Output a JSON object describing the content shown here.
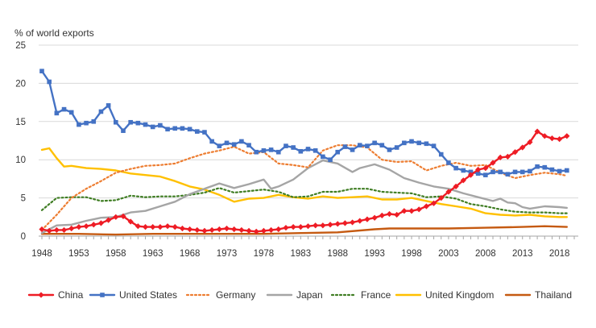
{
  "chart_data": {
    "type": "line",
    "title": "",
    "ylabel": "% of world exports",
    "xlabel": "",
    "xlim": [
      1948,
      2020
    ],
    "ylim": [
      0,
      25
    ],
    "y_ticks": [
      0,
      5,
      10,
      15,
      20,
      25
    ],
    "x_ticks": [
      1948,
      1953,
      1958,
      1963,
      1968,
      1973,
      1978,
      1983,
      1988,
      1993,
      1998,
      2003,
      2008,
      2013,
      2018
    ],
    "grid": "horizontal",
    "legend_position": "bottom",
    "series": [
      {
        "name": "China",
        "color": "#ee1c25",
        "style": "solid",
        "marker": "diamond",
        "x": [
          1948,
          1949,
          1950,
          1951,
          1952,
          1953,
          1954,
          1955,
          1956,
          1957,
          1958,
          1959,
          1960,
          1961,
          1962,
          1963,
          1964,
          1965,
          1966,
          1967,
          1968,
          1969,
          1970,
          1971,
          1972,
          1973,
          1974,
          1975,
          1976,
          1977,
          1978,
          1979,
          1980,
          1981,
          1982,
          1983,
          1984,
          1985,
          1986,
          1987,
          1988,
          1989,
          1990,
          1991,
          1992,
          1993,
          1994,
          1995,
          1996,
          1997,
          1998,
          1999,
          2000,
          2001,
          2002,
          2003,
          2004,
          2005,
          2006,
          2007,
          2008,
          2009,
          2010,
          2011,
          2012,
          2013,
          2014,
          2015,
          2016,
          2017,
          2018,
          2019
        ],
        "y": [
          0.9,
          0.7,
          0.8,
          0.8,
          1.0,
          1.2,
          1.3,
          1.5,
          1.7,
          2.1,
          2.5,
          2.6,
          1.9,
          1.3,
          1.2,
          1.2,
          1.2,
          1.3,
          1.2,
          1.0,
          0.9,
          0.8,
          0.7,
          0.8,
          0.9,
          1.0,
          0.9,
          0.8,
          0.7,
          0.6,
          0.7,
          0.8,
          0.9,
          1.1,
          1.2,
          1.2,
          1.3,
          1.4,
          1.4,
          1.5,
          1.6,
          1.7,
          1.8,
          2.0,
          2.2,
          2.4,
          2.7,
          2.9,
          2.8,
          3.3,
          3.3,
          3.5,
          3.9,
          4.3,
          5.0,
          5.8,
          6.5,
          7.3,
          8.0,
          8.7,
          8.9,
          9.6,
          10.3,
          10.4,
          11.0,
          11.6,
          12.3,
          13.7,
          13.1,
          12.8,
          12.7,
          13.1
        ]
      },
      {
        "name": "United States",
        "color": "#4472c4",
        "style": "solid",
        "marker": "square",
        "x": [
          1948,
          1949,
          1950,
          1951,
          1952,
          1953,
          1954,
          1955,
          1956,
          1957,
          1958,
          1959,
          1960,
          1961,
          1962,
          1963,
          1964,
          1965,
          1966,
          1967,
          1968,
          1969,
          1970,
          1971,
          1972,
          1973,
          1974,
          1975,
          1976,
          1977,
          1978,
          1979,
          1980,
          1981,
          1982,
          1983,
          1984,
          1985,
          1986,
          1987,
          1988,
          1989,
          1990,
          1991,
          1992,
          1993,
          1994,
          1995,
          1996,
          1997,
          1998,
          1999,
          2000,
          2001,
          2002,
          2003,
          2004,
          2005,
          2006,
          2007,
          2008,
          2009,
          2010,
          2011,
          2012,
          2013,
          2014,
          2015,
          2016,
          2017,
          2018,
          2019
        ],
        "y": [
          21.6,
          20.2,
          16.1,
          16.6,
          16.2,
          14.6,
          14.8,
          15.0,
          16.3,
          17.1,
          14.9,
          13.8,
          14.9,
          14.8,
          14.6,
          14.3,
          14.5,
          14.0,
          14.1,
          14.1,
          14.0,
          13.7,
          13.6,
          12.4,
          11.8,
          12.2,
          12.0,
          12.4,
          11.9,
          11.0,
          11.2,
          11.3,
          11.0,
          11.8,
          11.6,
          11.1,
          11.4,
          11.2,
          10.4,
          10.0,
          11.0,
          11.7,
          11.3,
          11.9,
          11.8,
          12.2,
          11.9,
          11.3,
          11.6,
          12.2,
          12.4,
          12.2,
          12.1,
          11.8,
          10.7,
          9.6,
          8.9,
          8.6,
          8.4,
          8.2,
          8.0,
          8.4,
          8.4,
          8.1,
          8.4,
          8.4,
          8.5,
          9.1,
          9.0,
          8.7,
          8.5,
          8.6
        ]
      },
      {
        "name": "Germany",
        "color": "#ed7d31",
        "style": "dotted",
        "marker": "none",
        "x": [
          1948,
          1950,
          1952,
          1954,
          1956,
          1958,
          1960,
          1962,
          1964,
          1966,
          1968,
          1970,
          1972,
          1974,
          1976,
          1978,
          1980,
          1982,
          1984,
          1986,
          1988,
          1990,
          1992,
          1994,
          1996,
          1998,
          2000,
          2002,
          2004,
          2006,
          2008,
          2010,
          2012,
          2014,
          2016,
          2018,
          2019
        ],
        "y": [
          0.8,
          2.8,
          5.0,
          6.2,
          7.2,
          8.3,
          8.8,
          9.2,
          9.3,
          9.5,
          10.2,
          10.8,
          11.2,
          11.7,
          10.8,
          11.0,
          9.5,
          9.3,
          9.0,
          11.2,
          11.9,
          11.9,
          11.6,
          10.0,
          9.7,
          9.8,
          8.6,
          9.2,
          9.6,
          9.2,
          9.3,
          8.3,
          7.6,
          8.0,
          8.3,
          8.1,
          7.9
        ]
      },
      {
        "name": "Japan",
        "color": "#a5a5a5",
        "style": "solid",
        "marker": "none",
        "x": [
          1948,
          1950,
          1952,
          1954,
          1956,
          1958,
          1960,
          1962,
          1964,
          1966,
          1968,
          1970,
          1972,
          1974,
          1976,
          1978,
          1979,
          1980,
          1982,
          1984,
          1986,
          1988,
          1990,
          1991,
          1993,
          1995,
          1997,
          1999,
          2001,
          2003,
          2005,
          2007,
          2009,
          2010,
          2011,
          2012,
          2013,
          2014,
          2016,
          2018,
          2019
        ],
        "y": [
          0.4,
          1.4,
          1.5,
          2.0,
          2.4,
          2.5,
          3.1,
          3.3,
          3.9,
          4.5,
          5.5,
          6.2,
          6.9,
          6.3,
          6.8,
          7.4,
          6.2,
          6.5,
          7.4,
          8.9,
          9.9,
          9.5,
          8.4,
          8.9,
          9.4,
          8.7,
          7.6,
          7.0,
          6.5,
          6.2,
          5.6,
          5.1,
          4.6,
          4.9,
          4.4,
          4.3,
          3.8,
          3.6,
          3.9,
          3.8,
          3.7
        ]
      },
      {
        "name": "France",
        "color": "#3f7d23",
        "style": "dotted",
        "marker": "none",
        "x": [
          1948,
          1950,
          1952,
          1954,
          1956,
          1958,
          1960,
          1962,
          1964,
          1966,
          1968,
          1970,
          1972,
          1974,
          1976,
          1978,
          1980,
          1982,
          1984,
          1986,
          1988,
          1990,
          1992,
          1994,
          1996,
          1998,
          2000,
          2002,
          2004,
          2006,
          2008,
          2010,
          2012,
          2014,
          2016,
          2018,
          2019
        ],
        "y": [
          3.4,
          5.0,
          5.1,
          5.1,
          4.6,
          4.7,
          5.3,
          5.1,
          5.2,
          5.2,
          5.4,
          5.7,
          6.3,
          5.7,
          5.9,
          6.1,
          5.8,
          5.1,
          5.2,
          5.8,
          5.8,
          6.2,
          6.2,
          5.8,
          5.7,
          5.6,
          5.1,
          5.2,
          4.9,
          4.2,
          3.9,
          3.5,
          3.2,
          3.1,
          3.1,
          3.0,
          3.0
        ]
      },
      {
        "name": "United Kingdom",
        "color": "#ffc000",
        "style": "solid",
        "marker": "none",
        "x": [
          1948,
          1949,
          1950,
          1951,
          1952,
          1954,
          1956,
          1958,
          1960,
          1962,
          1964,
          1966,
          1968,
          1970,
          1972,
          1974,
          1976,
          1978,
          1980,
          1982,
          1984,
          1986,
          1988,
          1990,
          1992,
          1994,
          1996,
          1998,
          2000,
          2002,
          2004,
          2006,
          2008,
          2010,
          2012,
          2014,
          2016,
          2018,
          2019
        ],
        "y": [
          11.3,
          11.5,
          10.2,
          9.1,
          9.2,
          8.9,
          8.8,
          8.6,
          8.2,
          8.0,
          7.8,
          7.2,
          6.5,
          6.1,
          5.4,
          4.5,
          4.9,
          5.0,
          5.4,
          5.1,
          4.9,
          5.2,
          5.0,
          5.1,
          5.2,
          4.8,
          4.8,
          5.0,
          4.6,
          4.2,
          3.9,
          3.6,
          3.0,
          2.8,
          2.7,
          2.8,
          2.6,
          2.5,
          2.5
        ]
      },
      {
        "name": "Thailand",
        "color": "#c55a11",
        "style": "solid",
        "marker": "none",
        "x": [
          1948,
          1953,
          1958,
          1963,
          1968,
          1973,
          1978,
          1983,
          1988,
          1993,
          1995,
          1998,
          2003,
          2008,
          2013,
          2016,
          2019
        ],
        "y": [
          0.3,
          0.3,
          0.2,
          0.3,
          0.3,
          0.3,
          0.3,
          0.4,
          0.5,
          0.9,
          1.0,
          1.0,
          1.0,
          1.1,
          1.2,
          1.3,
          1.2
        ]
      }
    ]
  }
}
